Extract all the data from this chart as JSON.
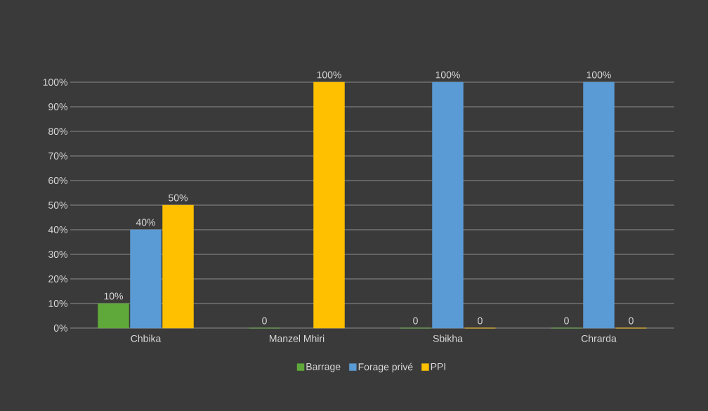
{
  "chart_data": {
    "type": "bar",
    "categories": [
      "Chbika",
      "Manzel Mhiri",
      "Sbikha",
      "Chrarda"
    ],
    "series": [
      {
        "name": "Barrage",
        "color": "#5fa83a",
        "values": [
          10,
          0,
          0,
          0
        ],
        "value_labels": [
          "10%",
          "0",
          "0",
          "0"
        ]
      },
      {
        "name": "Forage privé",
        "color": "#5b9bd5",
        "values": [
          40,
          null,
          100,
          100
        ],
        "value_labels": [
          "40%",
          null,
          "100%",
          "100%"
        ]
      },
      {
        "name": "PPI",
        "color": "#ffc000",
        "values": [
          50,
          100,
          0,
          0
        ],
        "value_labels": [
          "50%",
          "100%",
          "0",
          "0"
        ]
      }
    ],
    "ylim": [
      0,
      100
    ],
    "yticks": [
      {
        "value": 0,
        "label": "0%"
      },
      {
        "value": 10,
        "label": "10%"
      },
      {
        "value": 20,
        "label": "20%"
      },
      {
        "value": 30,
        "label": "30%"
      },
      {
        "value": 40,
        "label": "40%"
      },
      {
        "value": 50,
        "label": "50%"
      },
      {
        "value": 60,
        "label": "60%"
      },
      {
        "value": 70,
        "label": "70%"
      },
      {
        "value": 80,
        "label": "80%"
      },
      {
        "value": 90,
        "label": "90%"
      },
      {
        "value": 100,
        "label": "100%"
      }
    ],
    "grid": "y",
    "legend": "bottom"
  }
}
